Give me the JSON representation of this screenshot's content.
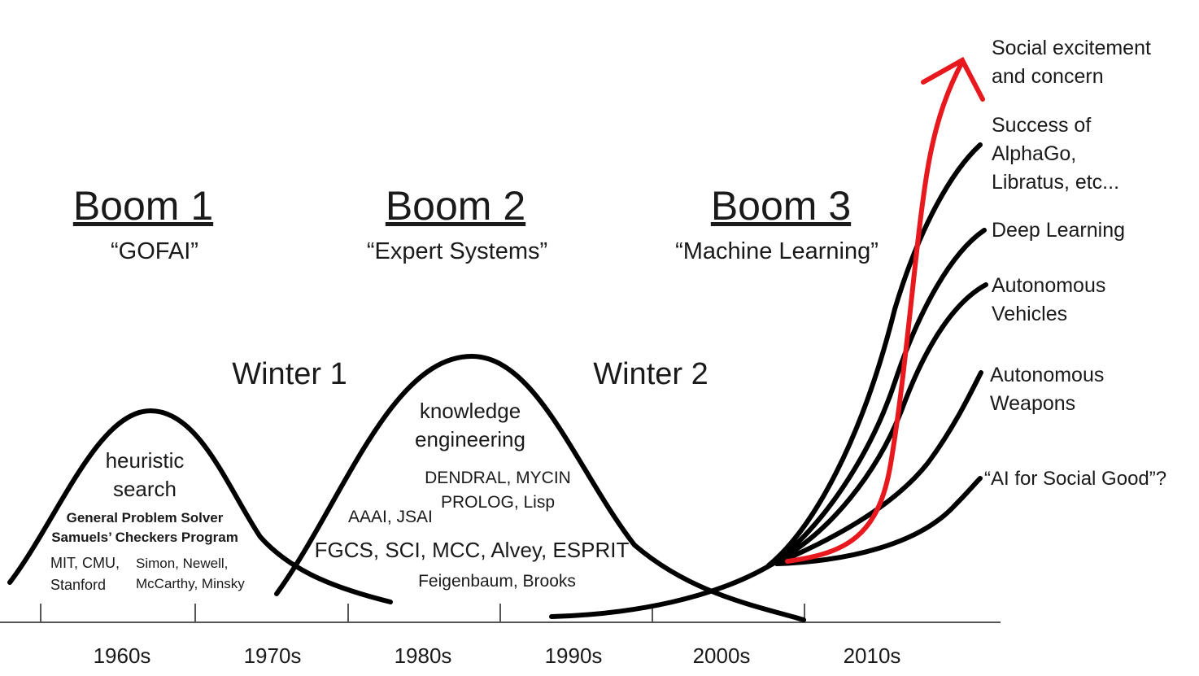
{
  "booms": [
    {
      "title": "Boom 1",
      "subtitle": "“GOFAI”"
    },
    {
      "title": "Boom 2",
      "subtitle": "“Expert Systems”"
    },
    {
      "title": "Boom 3",
      "subtitle": "“Machine Learning”"
    }
  ],
  "winters": [
    "Winter 1",
    "Winter 2"
  ],
  "boom1_notes": {
    "topic_line1": "heuristic",
    "topic_line2": "search",
    "program_line1": "General Problem Solver",
    "program_line2": "Samuels’ Checkers Program",
    "inst_line1": "MIT, CMU,",
    "inst_line2": "Stanford",
    "people_line1": "Simon, Newell,",
    "people_line2": "McCarthy, Minsky"
  },
  "boom2_notes": {
    "topic_line1": "knowledge",
    "topic_line2": "engineering",
    "systems_line1": "DENDRAL, MYCIN",
    "systems_line2": "PROLOG, Lisp",
    "orgs": "AAAI, JSAI",
    "projects": "FGCS, SCI, MCC, Alvey, ESPRIT",
    "people": "Feigenbaum, Brooks"
  },
  "timeline_ticks": [
    "1960s",
    "1970s",
    "1980s",
    "1990s",
    "2000s",
    "2010s"
  ],
  "outcomes": [
    {
      "line1": "Social excitement",
      "line2": "and concern",
      "line3": ""
    },
    {
      "line1": "Success of",
      "line2": "AlphaGo,",
      "line3": "Libratus, etc..."
    },
    {
      "line1": "Deep Learning",
      "line2": "",
      "line3": ""
    },
    {
      "line1": "Autonomous",
      "line2": "Vehicles",
      "line3": ""
    },
    {
      "line1": "Autonomous",
      "line2": "Weapons",
      "line3": ""
    },
    {
      "line1": "“AI for Social Good”?",
      "line2": "",
      "line3": ""
    }
  ],
  "colors": {
    "curve": "#000000",
    "highlight": "#e8191e",
    "text": "#1a1a1a"
  }
}
